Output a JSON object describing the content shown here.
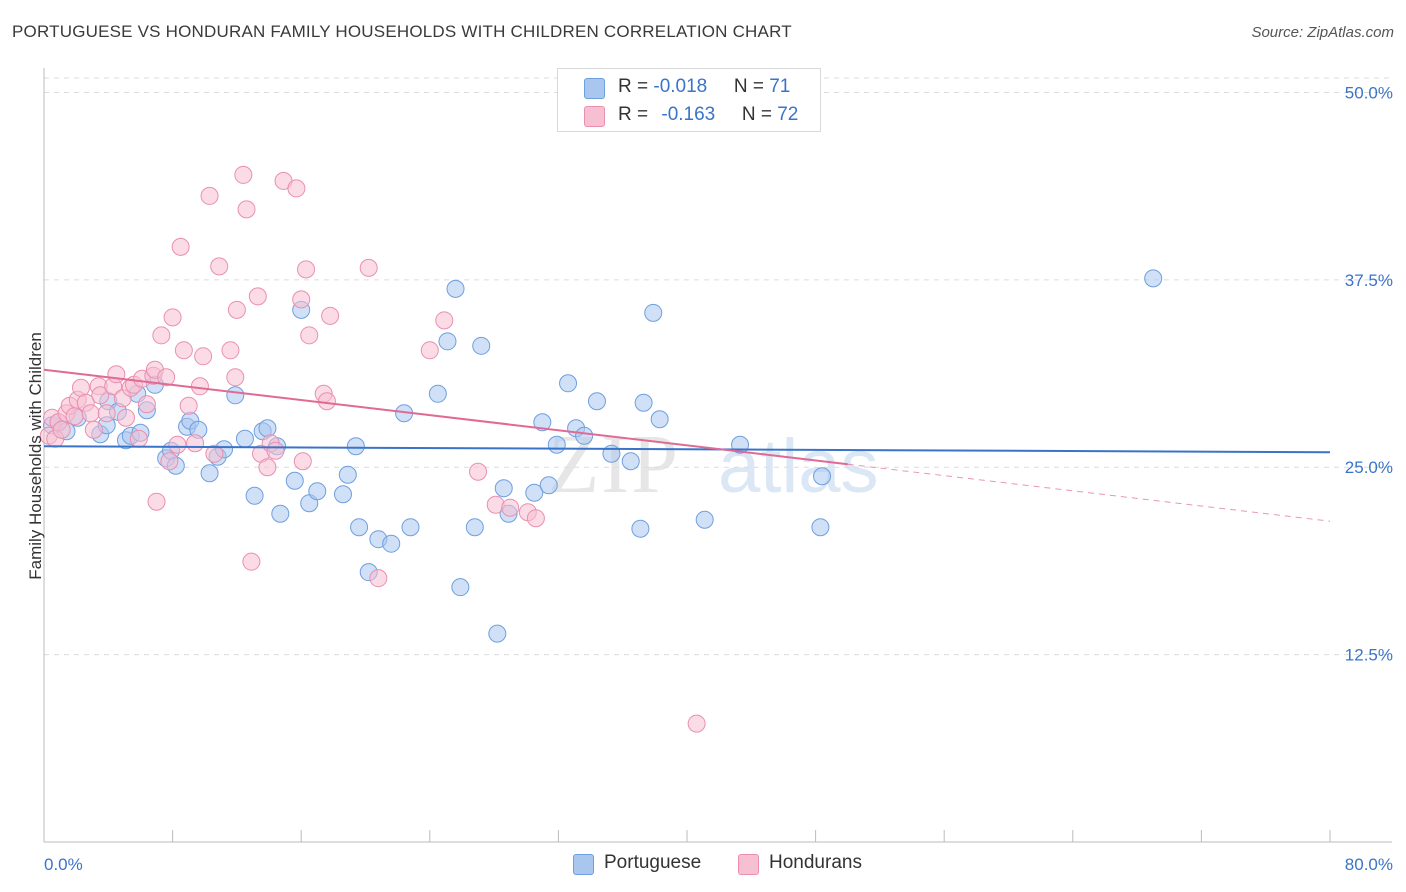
{
  "title": "PORTUGUESE VS HONDURAN FAMILY HOUSEHOLDS WITH CHILDREN CORRELATION CHART",
  "source": "Source: ZipAtlas.com",
  "watermark": {
    "zip": "ZIP",
    "atlas": "atlas"
  },
  "legend": {
    "rows": [
      {
        "r_label": "R = ",
        "r_value": "-0.018",
        "n_label": "N = ",
        "n_value": "71",
        "color": "#a9c6ee",
        "border": "#6f9fdf"
      },
      {
        "r_label": "R = ",
        "r_value": "-0.163",
        "n_label": "N = ",
        "n_value": "72",
        "color": "#f7c0d2",
        "border": "#ea8fb0"
      }
    ]
  },
  "bottom_legend": [
    {
      "label": "Portuguese",
      "color": "#a9c6ee",
      "border": "#6f9fdf"
    },
    {
      "label": "Hondurans",
      "color": "#f7c0d2",
      "border": "#ea8fb0"
    }
  ],
  "chart_data": {
    "type": "scatter",
    "title": "PORTUGUESE VS HONDURAN FAMILY HOUSEHOLDS WITH CHILDREN CORRELATION CHART",
    "xlabel": "",
    "ylabel": "Family Households with Children",
    "xlim": [
      0,
      80
    ],
    "ylim": [
      0,
      52.5
    ],
    "x_tick_labels": [
      "0.0%",
      "80.0%"
    ],
    "y_tick_values": [
      12.5,
      25.0,
      37.5,
      50.0
    ],
    "y_tick_labels": [
      "12.5%",
      "25.0%",
      "37.5%",
      "50.0%"
    ],
    "grid": true,
    "legend_position": "top-center",
    "series": [
      {
        "name": "Portuguese",
        "color": "#6f9fdf",
        "fill": "#a9c6ee",
        "trend": {
          "x": [
            0,
            80
          ],
          "y": [
            26.4,
            26.0
          ],
          "color": "#3a74c9"
        },
        "points": [
          [
            0.5,
            27.8
          ],
          [
            0.9,
            28.0
          ],
          [
            1.4,
            27.4
          ],
          [
            2.1,
            28.3
          ],
          [
            3.5,
            27.2
          ],
          [
            3.9,
            27.8
          ],
          [
            4.0,
            29.4
          ],
          [
            4.6,
            28.7
          ],
          [
            5.1,
            26.8
          ],
          [
            5.4,
            27.1
          ],
          [
            5.8,
            29.9
          ],
          [
            6.0,
            27.3
          ],
          [
            6.4,
            28.8
          ],
          [
            6.9,
            30.5
          ],
          [
            7.6,
            25.6
          ],
          [
            7.9,
            26.1
          ],
          [
            8.2,
            25.1
          ],
          [
            8.9,
            27.7
          ],
          [
            9.1,
            28.1
          ],
          [
            9.6,
            27.5
          ],
          [
            10.3,
            24.6
          ],
          [
            10.8,
            25.7
          ],
          [
            11.2,
            26.2
          ],
          [
            11.9,
            29.8
          ],
          [
            12.5,
            26.9
          ],
          [
            13.1,
            23.1
          ],
          [
            13.6,
            27.4
          ],
          [
            13.9,
            27.6
          ],
          [
            14.5,
            26.4
          ],
          [
            14.7,
            21.9
          ],
          [
            15.6,
            24.1
          ],
          [
            16.0,
            35.5
          ],
          [
            16.5,
            22.6
          ],
          [
            17.0,
            23.4
          ],
          [
            18.6,
            23.2
          ],
          [
            18.9,
            24.5
          ],
          [
            19.4,
            26.4
          ],
          [
            19.6,
            21.0
          ],
          [
            20.2,
            18.0
          ],
          [
            20.8,
            20.2
          ],
          [
            21.6,
            19.9
          ],
          [
            22.4,
            28.6
          ],
          [
            22.8,
            21.0
          ],
          [
            24.5,
            29.9
          ],
          [
            25.1,
            33.4
          ],
          [
            25.6,
            36.9
          ],
          [
            25.9,
            17.0
          ],
          [
            26.8,
            21.0
          ],
          [
            27.2,
            33.1
          ],
          [
            28.2,
            13.9
          ],
          [
            28.6,
            23.6
          ],
          [
            28.9,
            21.9
          ],
          [
            30.5,
            23.3
          ],
          [
            31.0,
            28.0
          ],
          [
            31.4,
            23.8
          ],
          [
            31.9,
            26.5
          ],
          [
            32.6,
            30.6
          ],
          [
            33.1,
            27.6
          ],
          [
            33.6,
            27.1
          ],
          [
            34.4,
            29.4
          ],
          [
            35.3,
            25.9
          ],
          [
            36.5,
            25.4
          ],
          [
            37.1,
            20.9
          ],
          [
            37.3,
            29.3
          ],
          [
            37.9,
            35.3
          ],
          [
            38.3,
            28.2
          ],
          [
            41.1,
            21.5
          ],
          [
            43.3,
            26.5
          ],
          [
            48.3,
            21.0
          ],
          [
            48.4,
            24.4
          ],
          [
            69.0,
            37.6
          ]
        ]
      },
      {
        "name": "Hondurans",
        "color": "#ea8fb0",
        "fill": "#f7c0d2",
        "trend": {
          "x": [
            0,
            50
          ],
          "y": [
            31.5,
            25.2
          ],
          "color": "#e06a95"
        },
        "trend_extension": {
          "x": [
            50,
            80
          ],
          "y": [
            25.2,
            21.4
          ]
        },
        "points": [
          [
            0.3,
            27.1
          ],
          [
            0.5,
            28.3
          ],
          [
            0.7,
            26.9
          ],
          [
            0.9,
            28.0
          ],
          [
            1.1,
            27.5
          ],
          [
            1.4,
            28.6
          ],
          [
            1.6,
            29.1
          ],
          [
            1.9,
            28.4
          ],
          [
            2.1,
            29.5
          ],
          [
            2.3,
            30.3
          ],
          [
            2.6,
            29.3
          ],
          [
            2.9,
            28.6
          ],
          [
            3.1,
            27.5
          ],
          [
            3.4,
            30.4
          ],
          [
            3.5,
            29.8
          ],
          [
            3.9,
            28.6
          ],
          [
            4.3,
            30.4
          ],
          [
            4.5,
            31.2
          ],
          [
            4.9,
            29.6
          ],
          [
            5.1,
            28.3
          ],
          [
            5.4,
            30.3
          ],
          [
            5.6,
            30.5
          ],
          [
            5.9,
            26.9
          ],
          [
            6.1,
            30.9
          ],
          [
            6.4,
            29.2
          ],
          [
            6.8,
            31.1
          ],
          [
            6.9,
            31.5
          ],
          [
            7.0,
            22.7
          ],
          [
            7.3,
            33.8
          ],
          [
            7.6,
            31.0
          ],
          [
            7.8,
            25.4
          ],
          [
            8.0,
            35.0
          ],
          [
            8.3,
            26.5
          ],
          [
            8.5,
            39.7
          ],
          [
            8.7,
            32.8
          ],
          [
            9.0,
            29.1
          ],
          [
            9.4,
            26.6
          ],
          [
            9.7,
            30.4
          ],
          [
            9.9,
            32.4
          ],
          [
            10.3,
            43.1
          ],
          [
            10.6,
            25.9
          ],
          [
            10.9,
            38.4
          ],
          [
            11.6,
            32.8
          ],
          [
            11.9,
            31.0
          ],
          [
            12.0,
            35.5
          ],
          [
            12.4,
            44.5
          ],
          [
            12.6,
            42.2
          ],
          [
            12.9,
            18.7
          ],
          [
            13.3,
            36.4
          ],
          [
            13.5,
            25.9
          ],
          [
            13.9,
            25.0
          ],
          [
            14.1,
            26.6
          ],
          [
            14.4,
            26.1
          ],
          [
            14.9,
            44.1
          ],
          [
            15.7,
            43.6
          ],
          [
            16.0,
            36.2
          ],
          [
            16.1,
            25.4
          ],
          [
            16.3,
            38.2
          ],
          [
            16.5,
            33.8
          ],
          [
            17.4,
            29.9
          ],
          [
            17.6,
            29.4
          ],
          [
            17.8,
            35.1
          ],
          [
            20.2,
            38.3
          ],
          [
            20.8,
            17.6
          ],
          [
            24.0,
            32.8
          ],
          [
            24.9,
            34.8
          ],
          [
            27.0,
            24.7
          ],
          [
            28.1,
            22.5
          ],
          [
            29.0,
            22.3
          ],
          [
            30.1,
            22.0
          ],
          [
            30.6,
            21.6
          ],
          [
            40.6,
            7.9
          ]
        ]
      }
    ]
  }
}
